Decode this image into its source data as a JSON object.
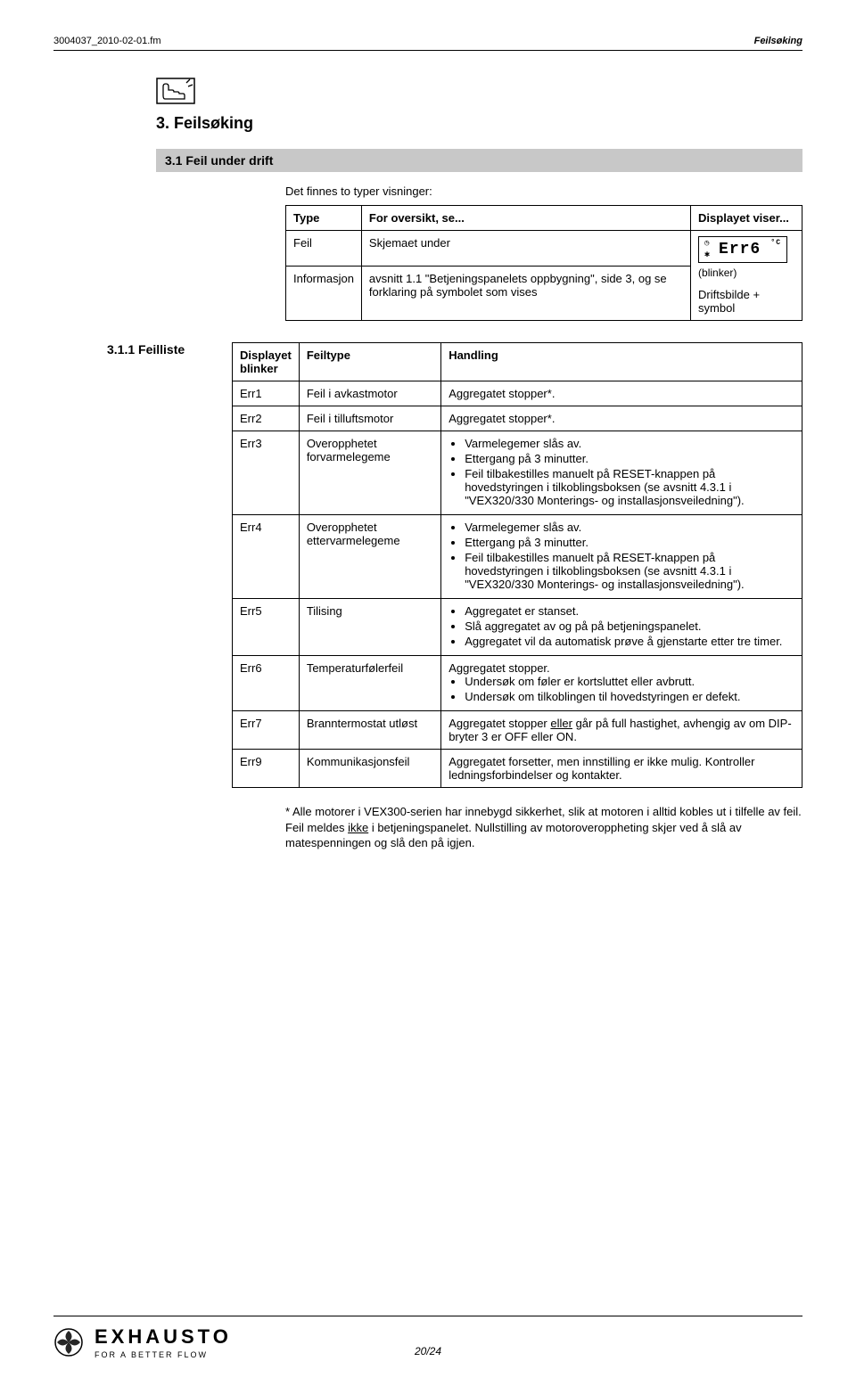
{
  "header": {
    "left": "3004037_2010-02-01.fm",
    "right": "Feilsøking"
  },
  "section": {
    "title": "3. Feilsøking",
    "sub_title": "3.1 Feil under drift",
    "intro": "Det finnes to typer visninger:"
  },
  "table1": {
    "headers": [
      "Type",
      "For oversikt, se...",
      "Displayet viser..."
    ],
    "rows": [
      {
        "c0": "Feil",
        "c1": "Skjemaet under",
        "lcd": "Err6",
        "lcd_note": "(blinker)"
      },
      {
        "c0": "Informasjon",
        "c1": "avsnitt 1.1 \"Betjeningspanelets oppbygning\", side 3, og se forklaring på symbolet som vises",
        "c2": "Driftsbilde + symbol"
      }
    ]
  },
  "subsub": "3.1.1 Feilliste",
  "table2": {
    "headers": [
      "Displayet blinker",
      "Feiltype",
      "Handling"
    ],
    "rows": [
      {
        "id": "Err1",
        "type": "Feil i avkastmotor",
        "text": "Aggregatet stopper*."
      },
      {
        "id": "Err2",
        "type": "Feil i tilluftsmotor",
        "text": "Aggregatet stopper*."
      },
      {
        "id": "Err3",
        "type": "Overopphetet forvarmelegeme",
        "bullets": [
          "Varmelegemer slås av.",
          "Ettergang på 3 minutter.",
          "Feil tilbakestilles manuelt på RESET-knappen på hovedstyringen i tilkoblingsboksen (se avsnitt 4.3.1 i \"VEX320/330 Monterings- og installasjonsveiledning\")."
        ]
      },
      {
        "id": "Err4",
        "type": "Overopphetet ettervarmelegeme",
        "bullets": [
          "Varmelegemer slås av.",
          "Ettergang på 3 minutter.",
          "Feil tilbakestilles manuelt på RESET-knappen på hovedstyringen i tilkoblingsboksen (se avsnitt 4.3.1 i \"VEX320/330 Monterings- og installasjonsveiledning\")."
        ]
      },
      {
        "id": "Err5",
        "type": "Tilising",
        "bullets": [
          "Aggregatet er stanset.",
          "Slå aggregatet av og på på betjeningspanelet.",
          "Aggregatet vil da automatisk prøve å gjenstarte etter tre timer."
        ]
      },
      {
        "id": "Err6",
        "type": "Temperaturfølerfeil",
        "lead": "Aggregatet stopper.",
        "bullets": [
          "Undersøk om føler er kortsluttet eller avbrutt.",
          "Undersøk om tilkoblingen til hovedstyringen er defekt."
        ]
      },
      {
        "id": "Err7",
        "type": "Branntermostat utløst",
        "html": "Aggregatet stopper <u>eller</u> går på full hastighet, avhengig av om DIP-bryter 3 er OFF eller ON."
      },
      {
        "id": "Err9",
        "type": "Kommunikasjonsfeil",
        "text": "Aggregatet forsetter, men innstilling er ikke mulig. Kontroller ledningsforbindelser og kontakter."
      }
    ]
  },
  "footnote_html": "* Alle motorer i VEX300-serien har innebygd sikkerhet, slik at motoren i alltid kobles ut i tilfelle av feil. Feil meldes <u>ikke</u> i betjeningspanelet. Nullstilling av motoroveroppheting skjer ved å slå av matespenningen og slå den på igjen.",
  "footer": {
    "logo": "EXHAUSTO",
    "tagline": "FOR A BETTER FLOW",
    "page": "20/24"
  }
}
